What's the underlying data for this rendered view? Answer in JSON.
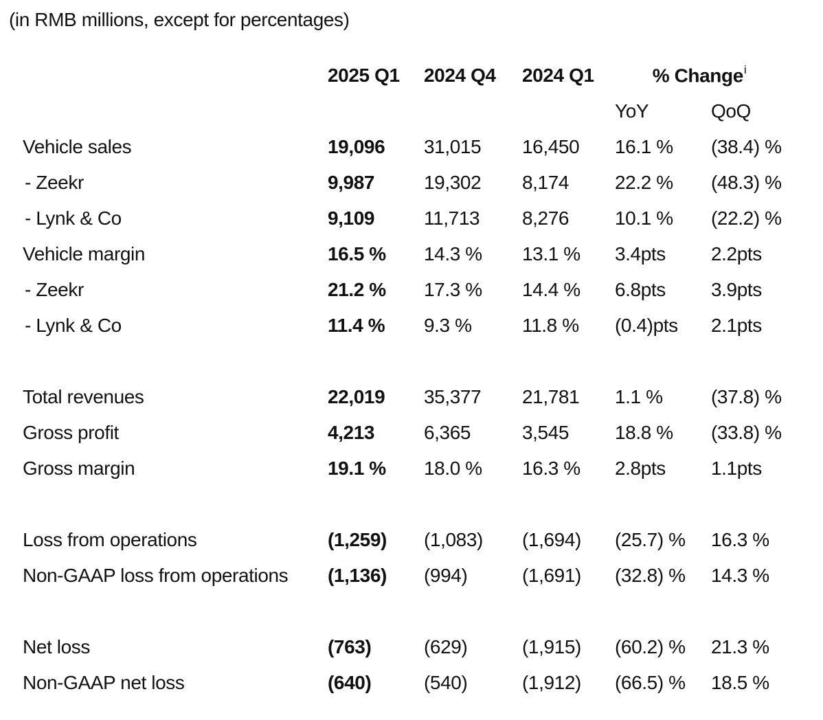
{
  "caption": "(in RMB millions, except for percentages)",
  "table": {
    "columns": [
      "2025 Q1",
      "2024 Q4",
      "2024 Q1"
    ],
    "change_header": "% Change",
    "change_superscript": "i",
    "change_subcolumns": [
      "YoY",
      "QoQ"
    ],
    "rows": [
      {
        "label": "Vehicle sales",
        "sub": false,
        "spacer_before": false,
        "values": [
          "19,096",
          "31,015",
          "16,450",
          "16.1 %",
          "(38.4) %"
        ]
      },
      {
        "label": "- Zeekr",
        "sub": true,
        "spacer_before": false,
        "values": [
          "9,987",
          "19,302",
          "8,174",
          "22.2 %",
          "(48.3) %"
        ]
      },
      {
        "label": "- Lynk & Co",
        "sub": true,
        "spacer_before": false,
        "values": [
          "9,109",
          "11,713",
          "8,276",
          "10.1 %",
          "(22.2) %"
        ]
      },
      {
        "label": "Vehicle margin",
        "sub": false,
        "spacer_before": false,
        "values": [
          "16.5 %",
          "14.3 %",
          "13.1 %",
          "3.4pts",
          "2.2pts"
        ]
      },
      {
        "label": "- Zeekr",
        "sub": true,
        "spacer_before": false,
        "values": [
          "21.2 %",
          "17.3 %",
          "14.4 %",
          "6.8pts",
          "3.9pts"
        ]
      },
      {
        "label": "- Lynk & Co",
        "sub": true,
        "spacer_before": false,
        "values": [
          "11.4 %",
          "9.3 %",
          "11.8 %",
          "(0.4)pts",
          "2.1pts"
        ]
      },
      {
        "label": "Total revenues",
        "sub": false,
        "spacer_before": true,
        "values": [
          "22,019",
          "35,377",
          "21,781",
          "1.1 %",
          "(37.8) %"
        ]
      },
      {
        "label": "Gross profit",
        "sub": false,
        "spacer_before": false,
        "values": [
          "4,213",
          "6,365",
          "3,545",
          "18.8 %",
          "(33.8) %"
        ]
      },
      {
        "label": "Gross margin",
        "sub": false,
        "spacer_before": false,
        "values": [
          "19.1 %",
          "18.0 %",
          "16.3 %",
          "2.8pts",
          "1.1pts"
        ]
      },
      {
        "label": "Loss from operations",
        "sub": false,
        "spacer_before": true,
        "values": [
          "(1,259)",
          "(1,083)",
          "(1,694)",
          "(25.7) %",
          "16.3 %"
        ]
      },
      {
        "label": "Non-GAAP loss from operations",
        "sub": false,
        "spacer_before": false,
        "values": [
          "(1,136)",
          "(994)",
          "(1,691)",
          "(32.8) %",
          "14.3 %"
        ]
      },
      {
        "label": "Net loss",
        "sub": false,
        "spacer_before": true,
        "values": [
          "(763)",
          "(629)",
          "(1,915)",
          "(60.2) %",
          "21.3 %"
        ]
      },
      {
        "label": "Non-GAAP net loss",
        "sub": false,
        "spacer_before": false,
        "values": [
          "(640)",
          "(540)",
          "(1,912)",
          "(66.5) %",
          "18.5 %"
        ]
      }
    ]
  }
}
